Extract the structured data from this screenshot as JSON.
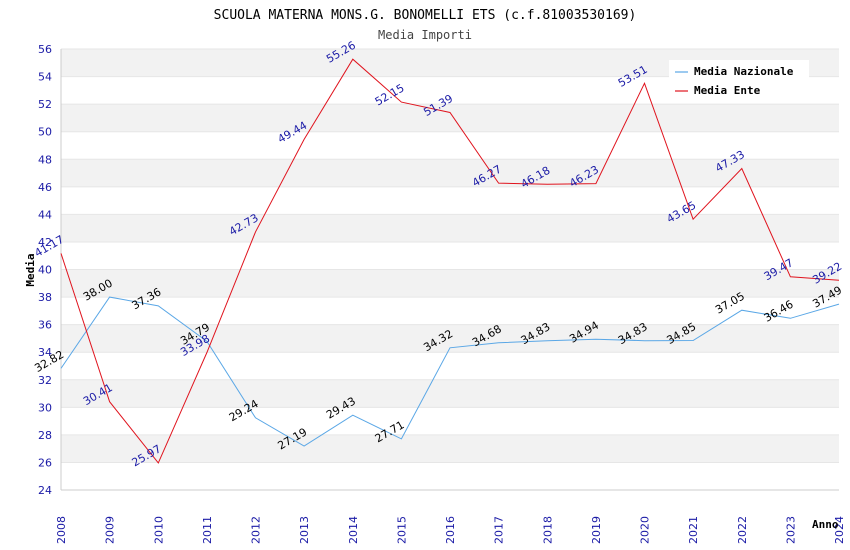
{
  "chart_data": {
    "type": "line",
    "title": "SCUOLA MATERNA MONS.G. BONOMELLI ETS (c.f.81003530169)",
    "subtitle": "Media Importi",
    "xlabel": "Anno",
    "ylabel": "Media",
    "ylim": [
      24,
      56
    ],
    "ytick_step": 2,
    "x": [
      "2008",
      "2009",
      "2010",
      "2011",
      "2012",
      "2013",
      "2014",
      "2015",
      "2016",
      "2017",
      "2018",
      "2019",
      "2020",
      "2021",
      "2022",
      "2023",
      "2024"
    ],
    "legend_position": "top-right",
    "series": [
      {
        "name": "Media Nazionale",
        "color": "#5aa7e6",
        "label_color": "#000000",
        "values": [
          32.82,
          38.0,
          37.36,
          34.79,
          29.24,
          27.19,
          29.43,
          27.71,
          34.32,
          34.68,
          34.83,
          34.94,
          34.83,
          34.85,
          37.05,
          36.46,
          37.49
        ],
        "labels": [
          "32.82",
          "38.00",
          "37.36",
          "34.79",
          "29.24",
          "27.19",
          "29.43",
          "27.71",
          "34.32",
          "34.68",
          "34.83",
          "34.94",
          "34.83",
          "34.85",
          "37.05",
          "36.46",
          "37.49"
        ]
      },
      {
        "name": "Media Ente",
        "color": "#e0141e",
        "label_color": "#1a1aa6",
        "values": [
          41.17,
          30.41,
          25.97,
          33.98,
          42.73,
          49.44,
          55.26,
          52.15,
          51.39,
          46.27,
          46.18,
          46.23,
          53.51,
          43.65,
          47.33,
          39.47,
          39.22
        ],
        "labels": [
          "41.17",
          "30.41",
          "25.97",
          "33.98",
          "42.73",
          "49.44",
          "55.26",
          "52.15",
          "51.39",
          "46.27",
          "46.18",
          "46.23",
          "53.51",
          "43.65",
          "47.33",
          "39.47",
          "39.22"
        ]
      }
    ]
  }
}
